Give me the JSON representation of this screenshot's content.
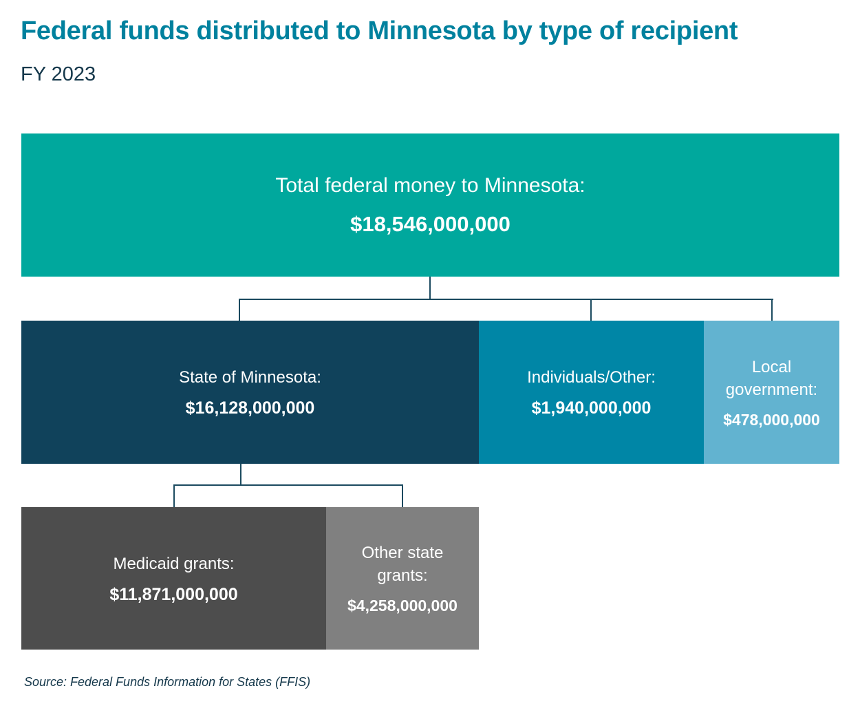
{
  "title": "Federal funds distributed to Minnesota by type of recipient",
  "subtitle": "FY 2023",
  "nodes": {
    "total": {
      "label": "Total federal money to Minnesota:",
      "value": "$18,546,000,000",
      "color": "#00a89d"
    },
    "state": {
      "label": "State of Minnesota:",
      "value": "$16,128,000,000",
      "color": "#10425b"
    },
    "individuals": {
      "label": "Individuals/Other:",
      "value": "$1,940,000,000",
      "color": "#0086a6"
    },
    "local": {
      "label": "Local government:",
      "value": "$478,000,000",
      "color": "#62b3d0"
    },
    "medicaid": {
      "label": "Medicaid grants:",
      "value": "$11,871,000,000",
      "color": "#4d4d4d"
    },
    "other_state": {
      "label": "Other state grants:",
      "value": "$4,258,000,000",
      "color": "#808080"
    }
  },
  "source": "Source: Federal Funds Information for States (FFIS)"
}
